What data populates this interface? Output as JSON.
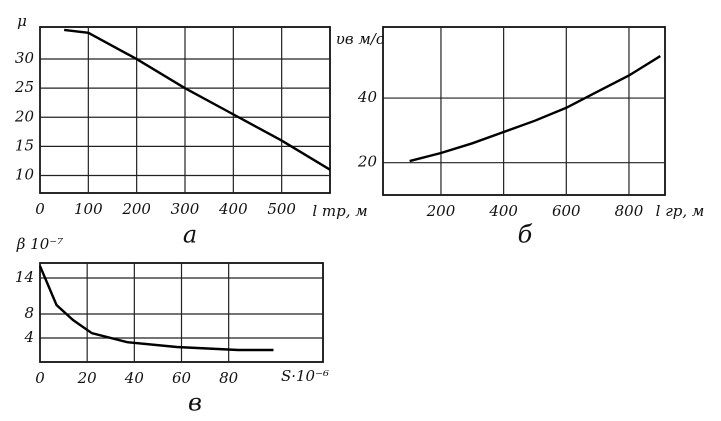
{
  "chart_data": [
    {
      "type": "line",
      "caption": "а",
      "ylabel": "μ",
      "xlabel": "l тр, м",
      "x": [
        50,
        100,
        200,
        300,
        400,
        500,
        600
      ],
      "series": [
        {
          "color": "#000000",
          "values": [
            35,
            34.5,
            30,
            25,
            20.5,
            16,
            11
          ]
        }
      ],
      "xlim": [
        0,
        600
      ],
      "ylim": [
        7,
        35.5
      ],
      "xticks": [
        0,
        100,
        200,
        300,
        400,
        500
      ],
      "yticks": [
        10,
        15,
        20,
        25,
        30
      ],
      "grid": true
    },
    {
      "type": "line",
      "caption": "б",
      "ylabel": "υв м/с",
      "xlabel": "l гр, м",
      "x": [
        100,
        200,
        300,
        400,
        500,
        600,
        700,
        800,
        900
      ],
      "series": [
        {
          "color": "#000000",
          "values": [
            20.5,
            23,
            26,
            29.5,
            33,
            37,
            42,
            47,
            53
          ]
        }
      ],
      "xlim": [
        15,
        915
      ],
      "ylim": [
        10,
        62
      ],
      "xticks": [
        200,
        400,
        600,
        800
      ],
      "yticks": [
        20,
        40
      ],
      "grid": true
    },
    {
      "type": "line",
      "caption": "в",
      "ylabel": "β 10⁻⁷",
      "xlabel": "S·10⁻⁶",
      "x": [
        0,
        7,
        14,
        22,
        37,
        58,
        84,
        99
      ],
      "series": [
        {
          "color": "#000000",
          "values": [
            16,
            9.5,
            7,
            4.8,
            3.3,
            2.5,
            2,
            2
          ]
        }
      ],
      "xlim": [
        0,
        120
      ],
      "ylim": [
        0,
        16.5
      ],
      "xticks": [
        0,
        20,
        40,
        60,
        80
      ],
      "yticks": [
        4,
        8,
        14
      ],
      "grid": true
    }
  ]
}
